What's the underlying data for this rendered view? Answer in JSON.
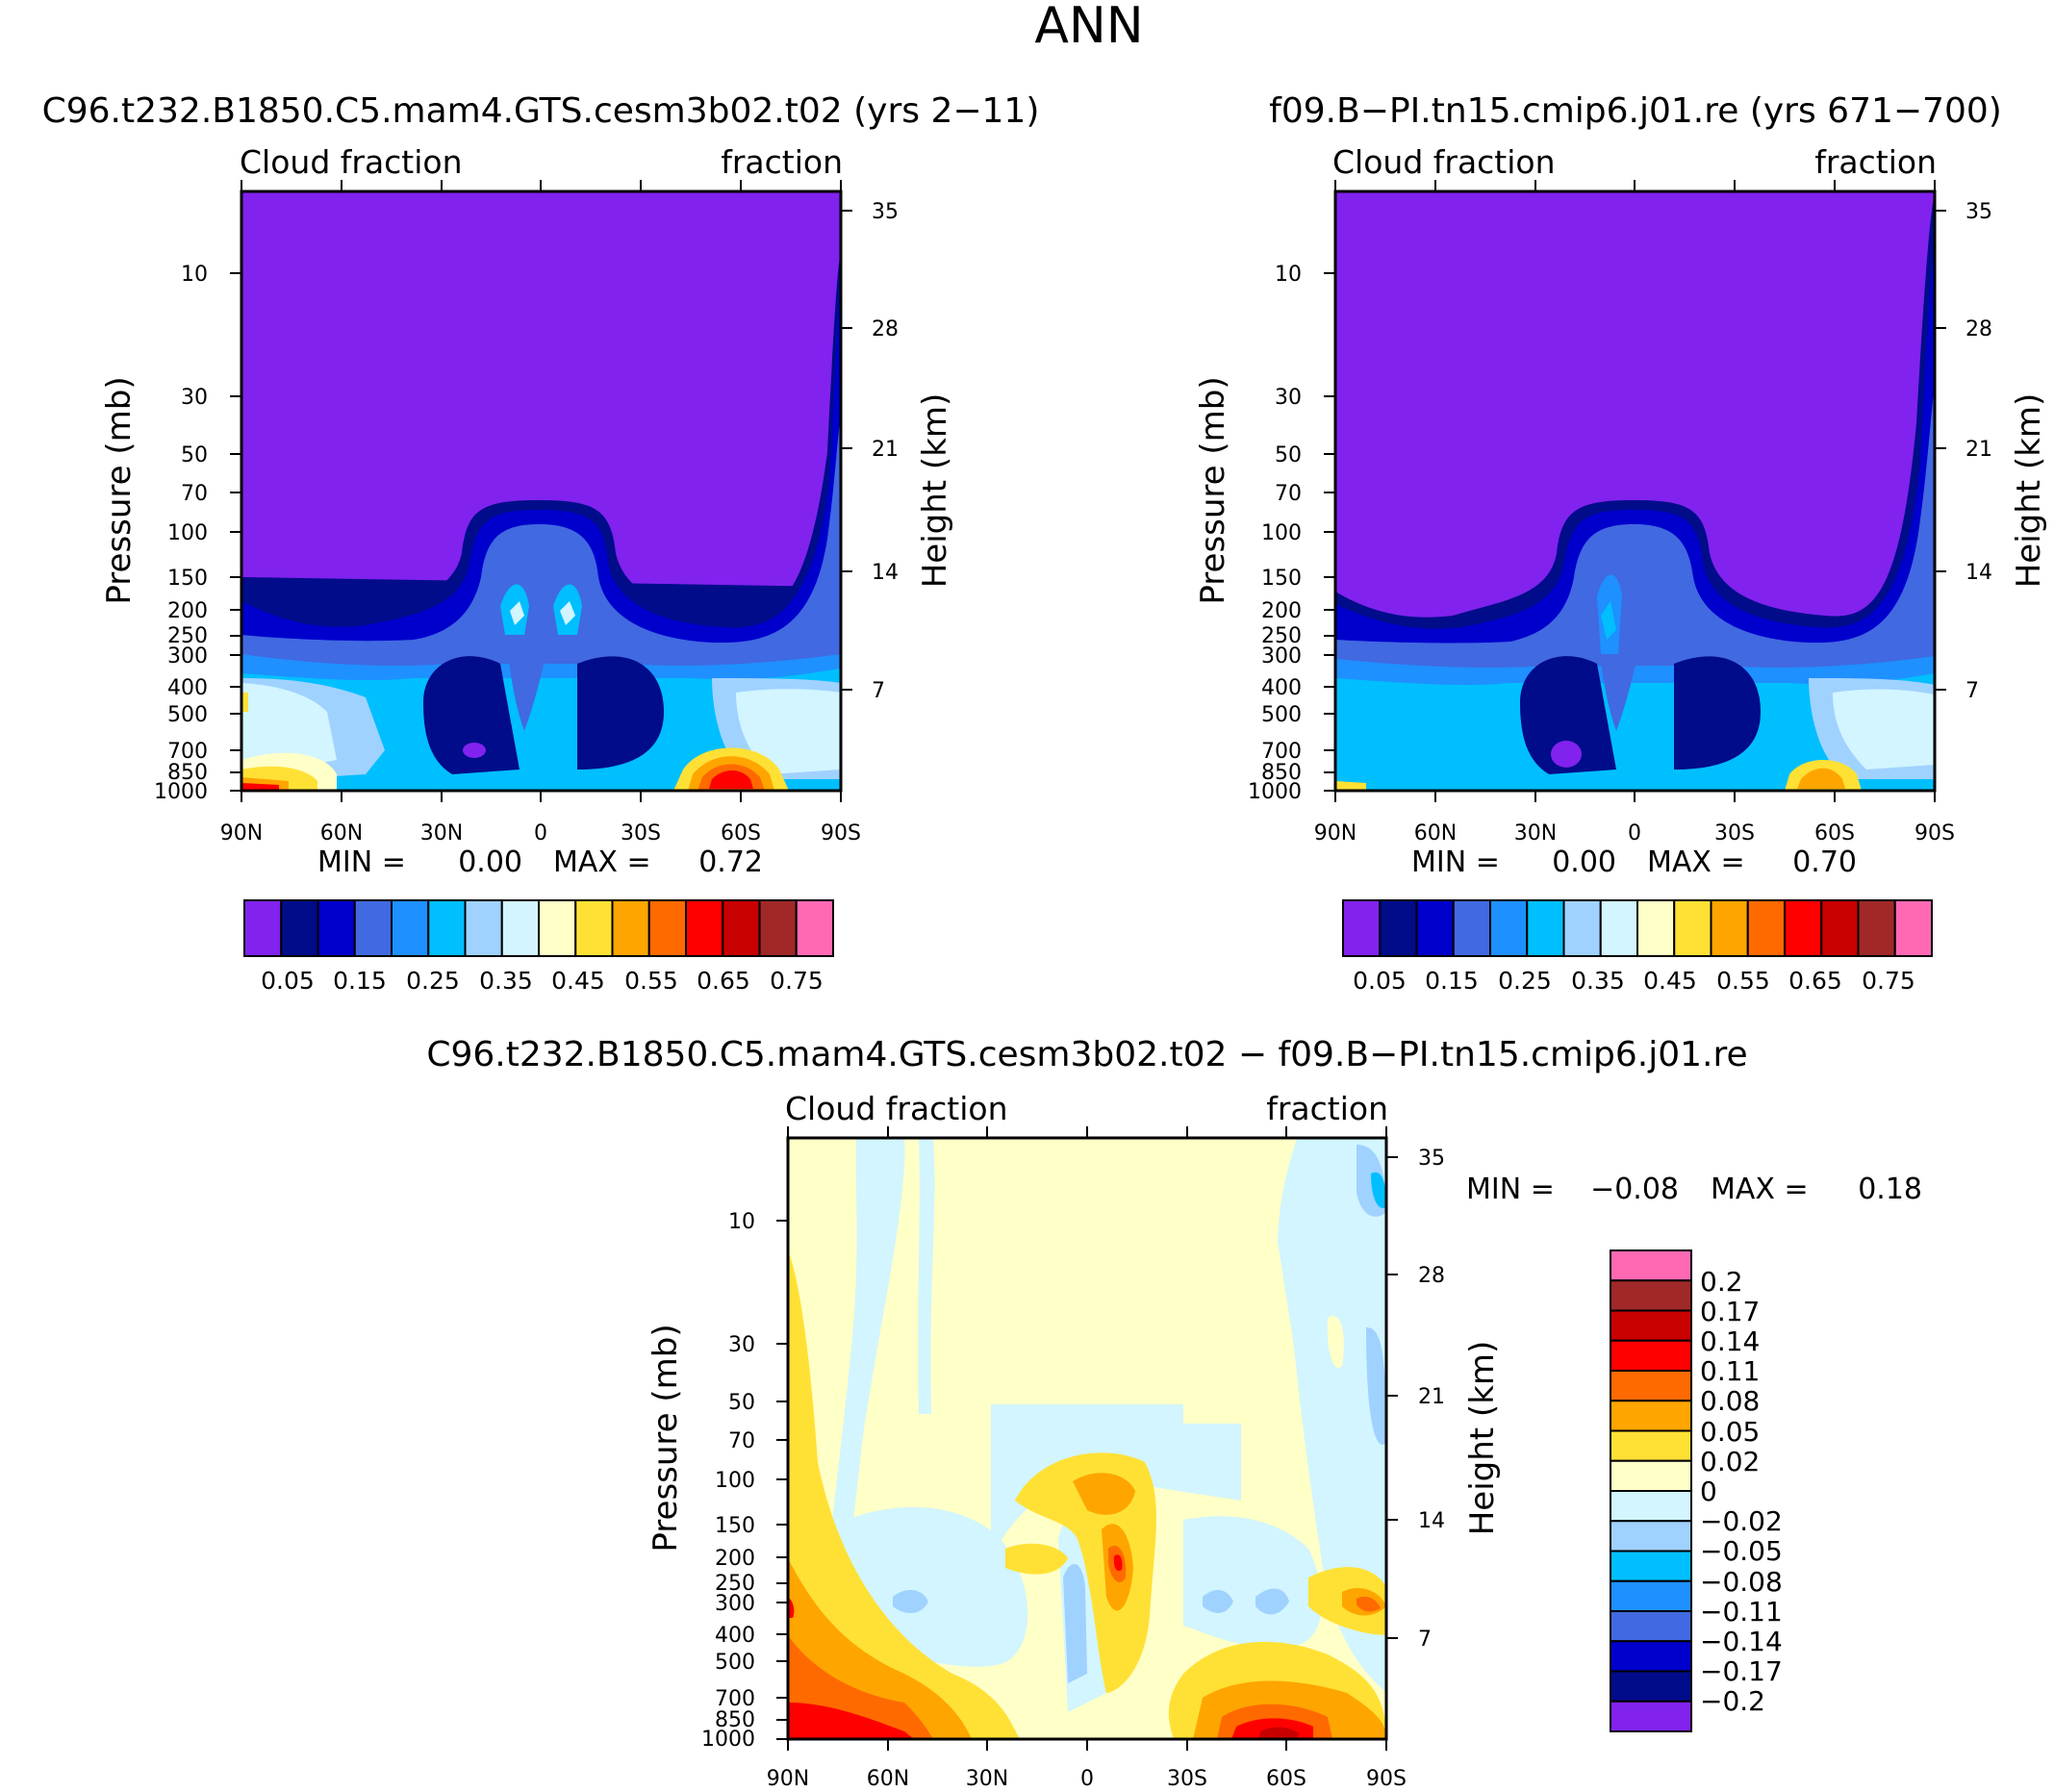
{
  "figure": {
    "title": "ANN"
  },
  "colors": {
    "top_scale": [
      "#8122ee",
      "#000c8a",
      "#0000cd",
      "#4169e1",
      "#1e90ff",
      "#00bfff",
      "#a0d2ff",
      "#d2f5ff",
      "#ffffc8",
      "#ffe135",
      "#ffa500",
      "#ff6a00",
      "#ff0000",
      "#c80000",
      "#a02828",
      "#ff69b4"
    ],
    "diff_scale": [
      "#8122ee",
      "#000c8a",
      "#0000cd",
      "#4169e1",
      "#1e90ff",
      "#00bfff",
      "#a0d2ff",
      "#d2f5ff",
      "#ffffc8",
      "#ffe135",
      "#ffa500",
      "#ff6a00",
      "#ff0000",
      "#c80000",
      "#a02828",
      "#ff69b4"
    ]
  },
  "panels": [
    {
      "id": "test",
      "title": "C96.t232.B1850.C5.mam4.GTS.cesm3b02.t02 (yrs 2−11)",
      "top_left_label": "Cloud fraction",
      "top_right_label": "fraction",
      "ylabel": "Pressure (mb)",
      "ylabel_right": "Height (km)",
      "min_label": "MIN =",
      "min_value": "0.00",
      "max_label": "MAX =",
      "max_value": "0.72",
      "colorbar_labels": [
        "0.05",
        "0.15",
        "0.25",
        "0.35",
        "0.45",
        "0.55",
        "0.65",
        "0.75"
      ]
    },
    {
      "id": "ref",
      "title": "f09.B−PI.tn15.cmip6.j01.re (yrs 671−700)",
      "top_left_label": "Cloud fraction",
      "top_right_label": "fraction",
      "ylabel": "Pressure (mb)",
      "ylabel_right": "Height (km)",
      "min_label": "MIN =",
      "min_value": "0.00",
      "max_label": "MAX =",
      "max_value": "0.70",
      "colorbar_labels": [
        "0.05",
        "0.15",
        "0.25",
        "0.35",
        "0.45",
        "0.55",
        "0.65",
        "0.75"
      ]
    },
    {
      "id": "diff",
      "title": "C96.t232.B1850.C5.mam4.GTS.cesm3b02.t02 − f09.B−PI.tn15.cmip6.j01.re",
      "top_left_label": "Cloud fraction",
      "top_right_label": "fraction",
      "ylabel": "Pressure (mb)",
      "ylabel_right": "Height (km)",
      "min_label": "MIN =",
      "min_value": "−0.08",
      "max_label": "MAX =",
      "max_value": "0.18",
      "colorbar_labels": [
        "0.2",
        "0.17",
        "0.14",
        "0.11",
        "0.08",
        "0.05",
        "0.02",
        "0",
        "−0.02",
        "−0.05",
        "−0.08",
        "−0.11",
        "−0.14",
        "−0.17",
        "−0.2"
      ]
    }
  ],
  "chart_data": [
    {
      "type": "heatmap",
      "title": "C96.t232.B1850.C5.mam4.GTS.cesm3b02.t02 (yrs 2−11)",
      "xlabel": "",
      "ylabel": "Pressure (mb)",
      "ylabel_right": "Height (km)",
      "x_ticks": [
        "90N",
        "60N",
        "30N",
        "0",
        "30S",
        "60S",
        "90S"
      ],
      "y_ticks": [
        "10",
        "30",
        "50",
        "70",
        "100",
        "150",
        "200",
        "250",
        "300",
        "400",
        "500",
        "700",
        "850",
        "1000"
      ],
      "y_ticks_right": [
        "35",
        "28",
        "21",
        "14",
        "7"
      ],
      "y_scale": "log",
      "ylim": [
        1000,
        3
      ],
      "min": 0.0,
      "max": 0.72,
      "levels": [
        0.05,
        0.1,
        0.15,
        0.2,
        0.25,
        0.3,
        0.35,
        0.4,
        0.45,
        0.5,
        0.55,
        0.6,
        0.65,
        0.7,
        0.75
      ],
      "colorbar_labels": [
        "0.05",
        "0.15",
        "0.25",
        "0.35",
        "0.45",
        "0.55",
        "0.65",
        "0.75"
      ]
    },
    {
      "type": "heatmap",
      "title": "f09.B−PI.tn15.cmip6.j01.re (yrs 671−700)",
      "xlabel": "",
      "ylabel": "Pressure (mb)",
      "ylabel_right": "Height (km)",
      "x_ticks": [
        "90N",
        "60N",
        "30N",
        "0",
        "30S",
        "60S",
        "90S"
      ],
      "y_ticks": [
        "10",
        "30",
        "50",
        "70",
        "100",
        "150",
        "200",
        "250",
        "300",
        "400",
        "500",
        "700",
        "850",
        "1000"
      ],
      "y_ticks_right": [
        "35",
        "28",
        "21",
        "14",
        "7"
      ],
      "y_scale": "log",
      "ylim": [
        1000,
        3
      ],
      "min": 0.0,
      "max": 0.7,
      "levels": [
        0.05,
        0.1,
        0.15,
        0.2,
        0.25,
        0.3,
        0.35,
        0.4,
        0.45,
        0.5,
        0.55,
        0.6,
        0.65,
        0.7,
        0.75
      ],
      "colorbar_labels": [
        "0.05",
        "0.15",
        "0.25",
        "0.35",
        "0.45",
        "0.55",
        "0.65",
        "0.75"
      ]
    },
    {
      "type": "heatmap",
      "title": "C96.t232.B1850.C5.mam4.GTS.cesm3b02.t02 − f09.B−PI.tn15.cmip6.j01.re",
      "xlabel": "",
      "ylabel": "Pressure (mb)",
      "ylabel_right": "Height (km)",
      "x_ticks": [
        "90N",
        "60N",
        "30N",
        "0",
        "30S",
        "60S",
        "90S"
      ],
      "y_ticks": [
        "10",
        "30",
        "50",
        "70",
        "100",
        "150",
        "200",
        "250",
        "300",
        "400",
        "500",
        "700",
        "850",
        "1000"
      ],
      "y_ticks_right": [
        "35",
        "28",
        "21",
        "14",
        "7"
      ],
      "y_scale": "log",
      "ylim": [
        1000,
        3
      ],
      "min": -0.08,
      "max": 0.18,
      "levels": [
        -0.2,
        -0.17,
        -0.14,
        -0.11,
        -0.08,
        -0.05,
        -0.02,
        0,
        0.02,
        0.05,
        0.08,
        0.11,
        0.14,
        0.17,
        0.2
      ],
      "colorbar_labels": [
        "0.2",
        "0.17",
        "0.14",
        "0.11",
        "0.08",
        "0.05",
        "0.02",
        "0",
        "−0.02",
        "−0.05",
        "−0.08",
        "−0.11",
        "−0.14",
        "−0.17",
        "−0.2"
      ]
    }
  ]
}
